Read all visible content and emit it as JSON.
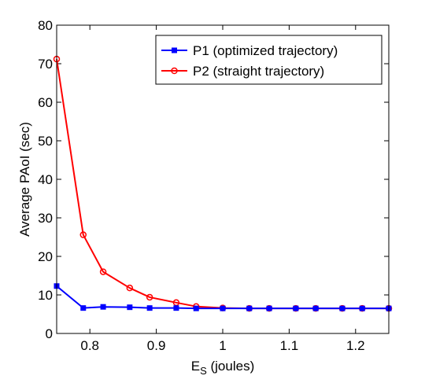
{
  "chart_data": {
    "type": "line",
    "xlabel_main": "E",
    "xlabel_sub": "S",
    "xlabel_rest": " (joules)",
    "ylabel": "Average PAoI (sec)",
    "xlim": [
      0.75,
      1.25
    ],
    "ylim": [
      0,
      80
    ],
    "xticks": [
      0.8,
      0.9,
      1,
      1.1,
      1.2
    ],
    "xtick_labels": [
      "0.8",
      "0.9",
      "1",
      "1.1",
      "1.2"
    ],
    "yticks": [
      0,
      10,
      20,
      30,
      40,
      50,
      60,
      70,
      80
    ],
    "ytick_labels": [
      "0",
      "10",
      "20",
      "30",
      "40",
      "50",
      "60",
      "70",
      "80"
    ],
    "grid": false,
    "legend_position": "top-right",
    "x": [
      0.75,
      0.79,
      0.82,
      0.86,
      0.89,
      0.93,
      0.96,
      1.0,
      1.04,
      1.07,
      1.11,
      1.14,
      1.18,
      1.21,
      1.25
    ],
    "series": [
      {
        "name": "P1 (optimized trajectory)",
        "color": "#0000ff",
        "marker": "square",
        "values": [
          12.3,
          6.6,
          6.9,
          6.8,
          6.6,
          6.6,
          6.5,
          6.5,
          6.5,
          6.5,
          6.5,
          6.5,
          6.5,
          6.5,
          6.5
        ]
      },
      {
        "name": "P2 (straight trajectory)",
        "color": "#ff0000",
        "marker": "circle",
        "values": [
          71.2,
          25.6,
          16.0,
          11.8,
          9.4,
          8.0,
          7.0,
          6.6,
          6.5,
          6.5,
          6.5,
          6.5,
          6.5,
          6.5,
          6.5
        ]
      }
    ]
  }
}
